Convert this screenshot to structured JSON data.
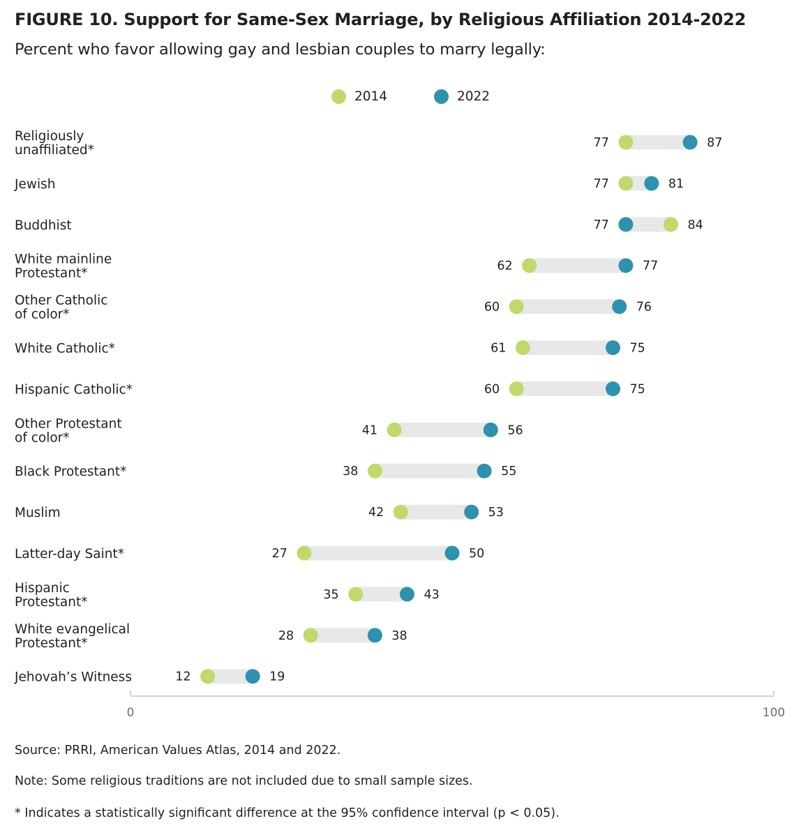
{
  "title": "FIGURE 10.  Support for Same-Sex Marriage, by Religious Affiliation 2014-2022",
  "subtitle": "Percent who favor allowing gay and lesbian couples to marry legally:",
  "colors": {
    "y2014": "#c0d96b",
    "y2022": "#2e91ad",
    "bar": "#e7e8e8",
    "axis": "#d3d3d3",
    "text": "#231f20"
  },
  "chart_data": {
    "type": "dumbbell",
    "title": "Support for Same-Sex Marriage, by Religious Affiliation 2014-2022",
    "legend": [
      "2014",
      "2022"
    ],
    "legend_position": "top-center",
    "xlim": [
      0,
      100
    ],
    "x_ticks": [
      "0",
      "100"
    ],
    "categories": [
      {
        "label": [
          "Religiously",
          "unaffiliated*"
        ],
        "v2014": 77,
        "v2022": 87
      },
      {
        "label": [
          "Jewish"
        ],
        "v2014": 77,
        "v2022": 81
      },
      {
        "label": [
          "Buddhist"
        ],
        "v2014": 84,
        "v2022": 77
      },
      {
        "label": [
          "White mainline",
          "Protestant*"
        ],
        "v2014": 62,
        "v2022": 77
      },
      {
        "label": [
          "Other Catholic",
          "of color*"
        ],
        "v2014": 60,
        "v2022": 76
      },
      {
        "label": [
          "White Catholic*"
        ],
        "v2014": 61,
        "v2022": 75
      },
      {
        "label": [
          "Hispanic Catholic*"
        ],
        "v2014": 60,
        "v2022": 75
      },
      {
        "label": [
          "Other Protestant",
          "of color*"
        ],
        "v2014": 41,
        "v2022": 56
      },
      {
        "label": [
          "Black Protestant*"
        ],
        "v2014": 38,
        "v2022": 55
      },
      {
        "label": [
          "Muslim"
        ],
        "v2014": 42,
        "v2022": 53
      },
      {
        "label": [
          "Latter-day Saint*"
        ],
        "v2014": 27,
        "v2022": 50
      },
      {
        "label": [
          "Hispanic",
          "Protestant*"
        ],
        "v2014": 35,
        "v2022": 43
      },
      {
        "label": [
          "White evangelical",
          "Protestant*"
        ],
        "v2014": 28,
        "v2022": 38
      },
      {
        "label": [
          "Jehovah’s Witness"
        ],
        "v2014": 12,
        "v2022": 19
      }
    ]
  },
  "notes": {
    "source": "Source: PRRI, American Values Atlas, 2014 and 2022.",
    "note": "Note: Some religious traditions are not included due to small sample sizes.",
    "significance": "* Indicates a statistically significant difference at the 95% confidence interval (p < 0.05)."
  }
}
